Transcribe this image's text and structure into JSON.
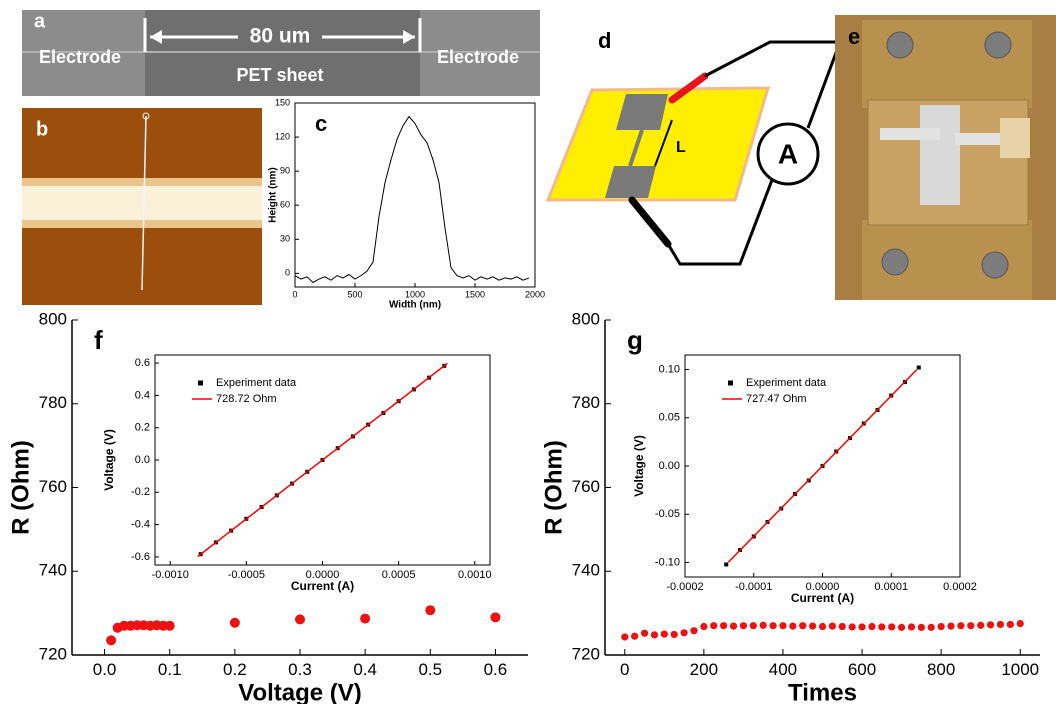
{
  "figure": {
    "a": {
      "label": "a",
      "scale": "80 um",
      "left": "Electrode",
      "middle": "PET sheet",
      "right": "Electrode"
    },
    "b": {
      "label": "b"
    },
    "d": {
      "label": "d",
      "meter": "A",
      "length": "L"
    },
    "e": {
      "label": "e"
    }
  },
  "chart_data": [
    {
      "type": "line",
      "panel": "c",
      "x_label": "Width (nm)",
      "y_label": "Height (nm)",
      "color": "#000000",
      "x": [
        0,
        50,
        100,
        150,
        200,
        250,
        300,
        350,
        400,
        450,
        500,
        550,
        600,
        650,
        700,
        750,
        800,
        850,
        900,
        950,
        1000,
        1050,
        1100,
        1150,
        1200,
        1250,
        1300,
        1350,
        1400,
        1450,
        1500,
        1550,
        1600,
        1650,
        1700,
        1750,
        1800,
        1850,
        1900,
        1950
      ],
      "values": [
        -2,
        -5,
        -3,
        -8,
        -5,
        -3,
        -6,
        -2,
        -4,
        -1,
        -5,
        -2,
        2,
        10,
        50,
        80,
        100,
        118,
        130,
        138,
        132,
        122,
        115,
        100,
        80,
        40,
        5,
        -2,
        -4,
        -2,
        -6,
        -3,
        -5,
        -3,
        -6,
        -4,
        -5,
        -3,
        -6,
        -4
      ],
      "xlim": [
        0,
        2000
      ],
      "xticks": [
        0,
        500,
        1000,
        1500,
        2000
      ],
      "ylim": [
        -12,
        150
      ],
      "yticks": [
        0,
        30,
        60,
        90,
        120,
        150
      ]
    },
    {
      "type": "scatter",
      "panel": "f",
      "x_label": "Voltage (V)",
      "y_label": "R (Ohm)",
      "color": "#ee1111",
      "x": [
        0.01,
        0.02,
        0.03,
        0.04,
        0.05,
        0.06,
        0.07,
        0.08,
        0.09,
        0.1,
        0.2,
        0.3,
        0.4,
        0.5,
        0.6
      ],
      "values": [
        723.5,
        726.5,
        727,
        727,
        727.1,
        727.1,
        727,
        727.1,
        727,
        727,
        727.7,
        728.5,
        728.7,
        730.7,
        729
      ],
      "xlim": [
        -0.05,
        0.65
      ],
      "xticks": [
        {
          "value": 0,
          "label": "0.0"
        },
        0.1,
        0.2,
        0.3,
        0.4,
        0.5,
        0.6
      ],
      "ylim": [
        720,
        800
      ],
      "yticks": [
        720,
        740,
        760,
        780,
        800
      ]
    },
    {
      "type": "scatter",
      "x_label": "Current (A)",
      "y_label": "Voltage (V)",
      "series": [
        {
          "name": "Experiment data",
          "color": "#000000",
          "marker": "square",
          "x": [
            -0.0008,
            -0.0007,
            -0.0006,
            -0.0005,
            -0.0004,
            -0.0003,
            -0.0002,
            -0.0001,
            0,
            0.0001,
            0.0002,
            0.0003,
            0.0004,
            0.0005,
            0.0006,
            0.0007,
            0.0008
          ],
          "values": [
            -0.583,
            -0.51,
            -0.437,
            -0.364,
            -0.291,
            -0.219,
            -0.146,
            -0.073,
            0,
            0.073,
            0.146,
            0.219,
            0.291,
            0.364,
            0.437,
            0.51,
            0.583
          ]
        },
        {
          "name": "728.72 Ohm",
          "color": "#ff0000",
          "marker": "line",
          "x": [
            -0.00082,
            0.00082
          ],
          "values": [
            -0.598,
            0.598
          ]
        }
      ],
      "xlim": [
        -0.0011,
        0.0011
      ],
      "xticks": [
        {
          "value": -0.001,
          "label": "-0.0010"
        },
        -0.0005,
        {
          "value": 0,
          "label": "0.0000"
        },
        0.0005,
        {
          "value": 0.001,
          "label": "0.0010"
        }
      ],
      "ylim": [
        -0.65,
        0.65
      ],
      "yticks": [
        -0.6,
        -0.4,
        -0.2,
        {
          "value": 0,
          "label": "0.0"
        },
        0.2,
        0.4,
        0.6
      ]
    },
    {
      "type": "scatter",
      "panel": "g",
      "x_label": "Times",
      "y_label": "R (Ohm)",
      "color": "#ee1111",
      "x": [
        0,
        25,
        50,
        75,
        100,
        125,
        150,
        175,
        200,
        225,
        250,
        275,
        300,
        325,
        350,
        375,
        400,
        425,
        450,
        475,
        500,
        525,
        550,
        575,
        600,
        625,
        650,
        675,
        700,
        725,
        750,
        775,
        800,
        825,
        850,
        875,
        900,
        925,
        950,
        975,
        1000
      ],
      "values": [
        724.3,
        724.5,
        725.2,
        724.8,
        725,
        724.9,
        725.3,
        725.8,
        726.8,
        727,
        727,
        726.9,
        727,
        727,
        727.1,
        727,
        727,
        726.9,
        727,
        726.9,
        726.8,
        726.9,
        726.8,
        726.7,
        726.7,
        726.8,
        726.7,
        726.7,
        726.6,
        726.7,
        726.6,
        726.6,
        726.8,
        726.9,
        727,
        727,
        727.1,
        727.2,
        727.3,
        727.3,
        727.5
      ],
      "xlim": [
        -50,
        1050
      ],
      "xticks": [
        0,
        200,
        400,
        600,
        800,
        1000
      ],
      "ylim": [
        720,
        800
      ],
      "yticks": [
        720,
        740,
        760,
        780,
        800
      ]
    },
    {
      "type": "scatter",
      "x_label": "Current (A)",
      "y_label": "Voltage (V)",
      "series": [
        {
          "name": "Experiment data",
          "color": "#000000",
          "marker": "square",
          "x": [
            -0.00014,
            -0.00012,
            -0.0001,
            -8e-05,
            -6e-05,
            -4e-05,
            -2e-05,
            0,
            2e-05,
            4e-05,
            6e-05,
            8e-05,
            0.0001,
            0.00012,
            0.00014
          ],
          "values": [
            -0.102,
            -0.087,
            -0.073,
            -0.058,
            -0.044,
            -0.029,
            -0.015,
            0,
            0.015,
            0.029,
            0.044,
            0.058,
            0.073,
            0.087,
            0.102
          ]
        },
        {
          "name": "727.47 Ohm",
          "color": "#ff0000",
          "marker": "line",
          "x": [
            -0.000137,
            0.000137
          ],
          "values": [
            -0.0997,
            0.0997
          ]
        }
      ],
      "xlim": [
        -0.0002,
        0.0002
      ],
      "xticks": [
        -0.0002,
        -0.0001,
        {
          "value": 0,
          "label": "0.0000"
        },
        0.0001,
        0.0002
      ],
      "ylim": [
        -0.115,
        0.115
      ],
      "yticks": [
        {
          "value": -0.1,
          "label": "-0.10"
        },
        -0.05,
        {
          "value": 0,
          "label": "0.00"
        },
        0.05,
        {
          "value": 0.1,
          "label": "0.10"
        }
      ]
    }
  ]
}
